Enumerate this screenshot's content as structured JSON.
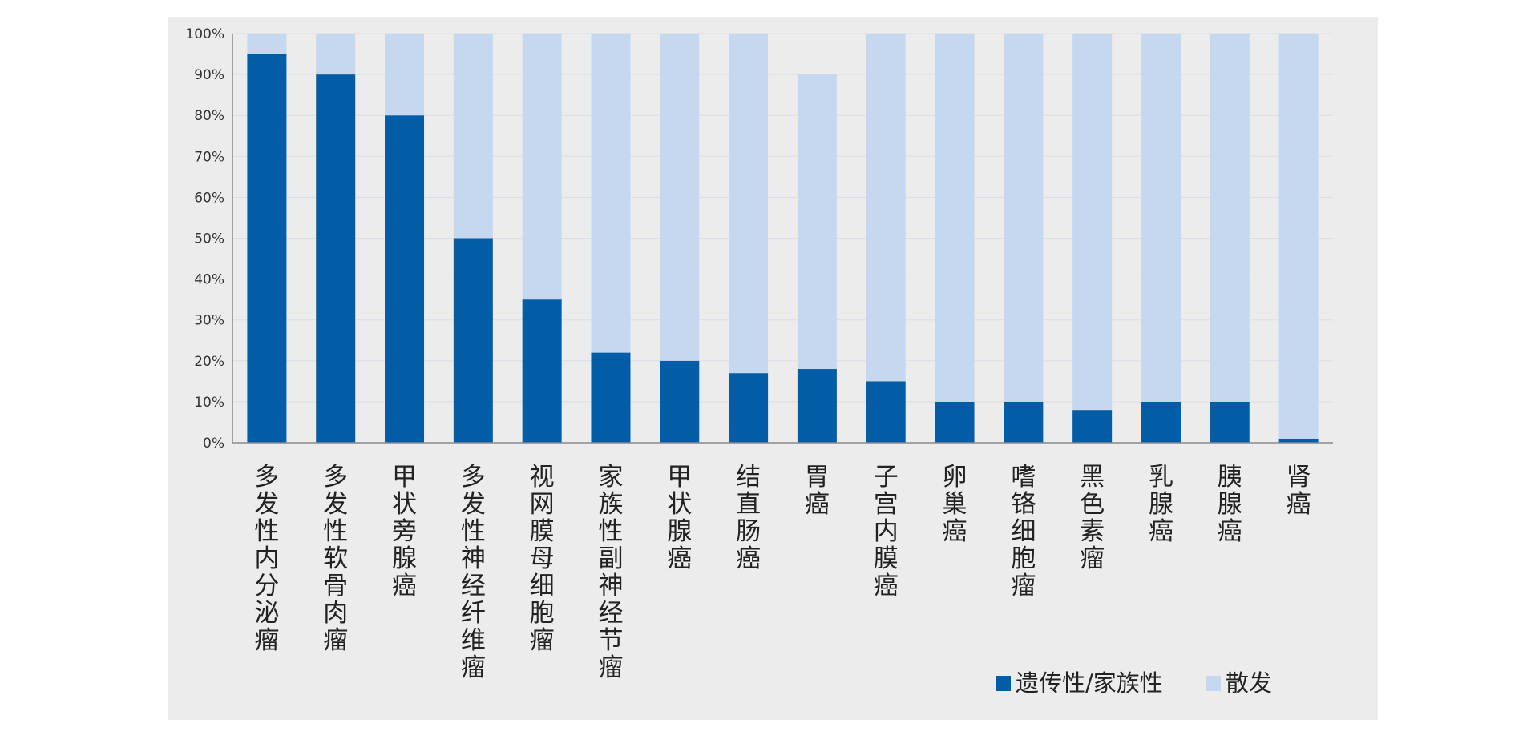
{
  "chart_data": {
    "type": "bar",
    "stacked": true,
    "categories": [
      "多发性内分泌瘤",
      "多发性软骨肉瘤",
      "甲状旁腺癌",
      "多发性神经纤维瘤",
      "视网膜母细胞瘤",
      "家族性副神经节瘤",
      "甲状腺癌",
      "结直肠癌",
      "胃癌",
      "子宫内膜癌",
      "卵巢癌",
      "嗜铬细胞瘤",
      "黑色素瘤",
      "乳腺癌",
      "胰腺癌",
      "肾癌"
    ],
    "series": [
      {
        "name": "遗传性/家族性",
        "color": "#035da6",
        "values": [
          95,
          90,
          80,
          50,
          35,
          22,
          20,
          17,
          18,
          15,
          10,
          10,
          8,
          10,
          10,
          1
        ]
      },
      {
        "name": "散发",
        "color": "#c6d8ef",
        "values": [
          5,
          10,
          20,
          50,
          65,
          78,
          80,
          83,
          72,
          85,
          90,
          90,
          92,
          90,
          90,
          99
        ]
      }
    ],
    "yticks": [
      "0%",
      "10%",
      "20%",
      "30%",
      "40%",
      "50%",
      "60%",
      "70%",
      "80%",
      "90%",
      "100%"
    ],
    "ylim": [
      0,
      100
    ],
    "ylabel": "",
    "xlabel": "",
    "legend_position": "bottom-right",
    "grid": true
  }
}
